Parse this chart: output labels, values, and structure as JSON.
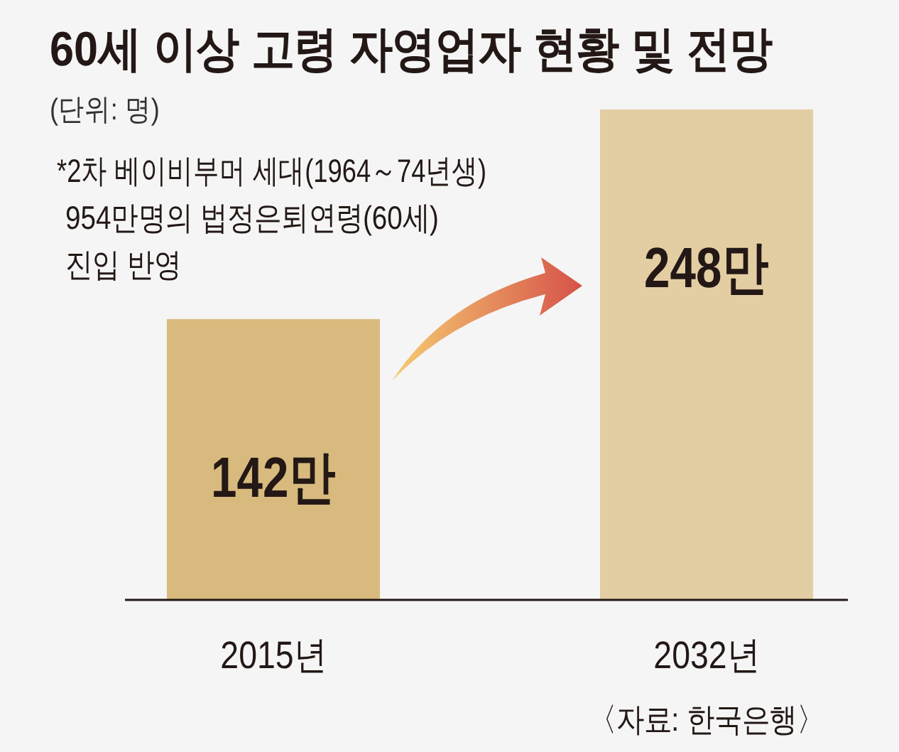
{
  "chart_data": {
    "type": "bar",
    "title": "60세 이상 고령 자영업자 현황 및 전망",
    "subtitle": "(단위: 명)",
    "categories": [
      "2015년",
      "2032년"
    ],
    "values": [
      142,
      248
    ],
    "value_labels": [
      "142만",
      "248만"
    ],
    "colors": [
      "#d8ba7e",
      "#e3cda2"
    ],
    "annotations": [
      "*2차 베이비부머 세대(1964～74년생)\n954만명의 법정은퇴연령(60세)\n진입 반영",
      "〈자료: 한국은행〉"
    ]
  }
}
